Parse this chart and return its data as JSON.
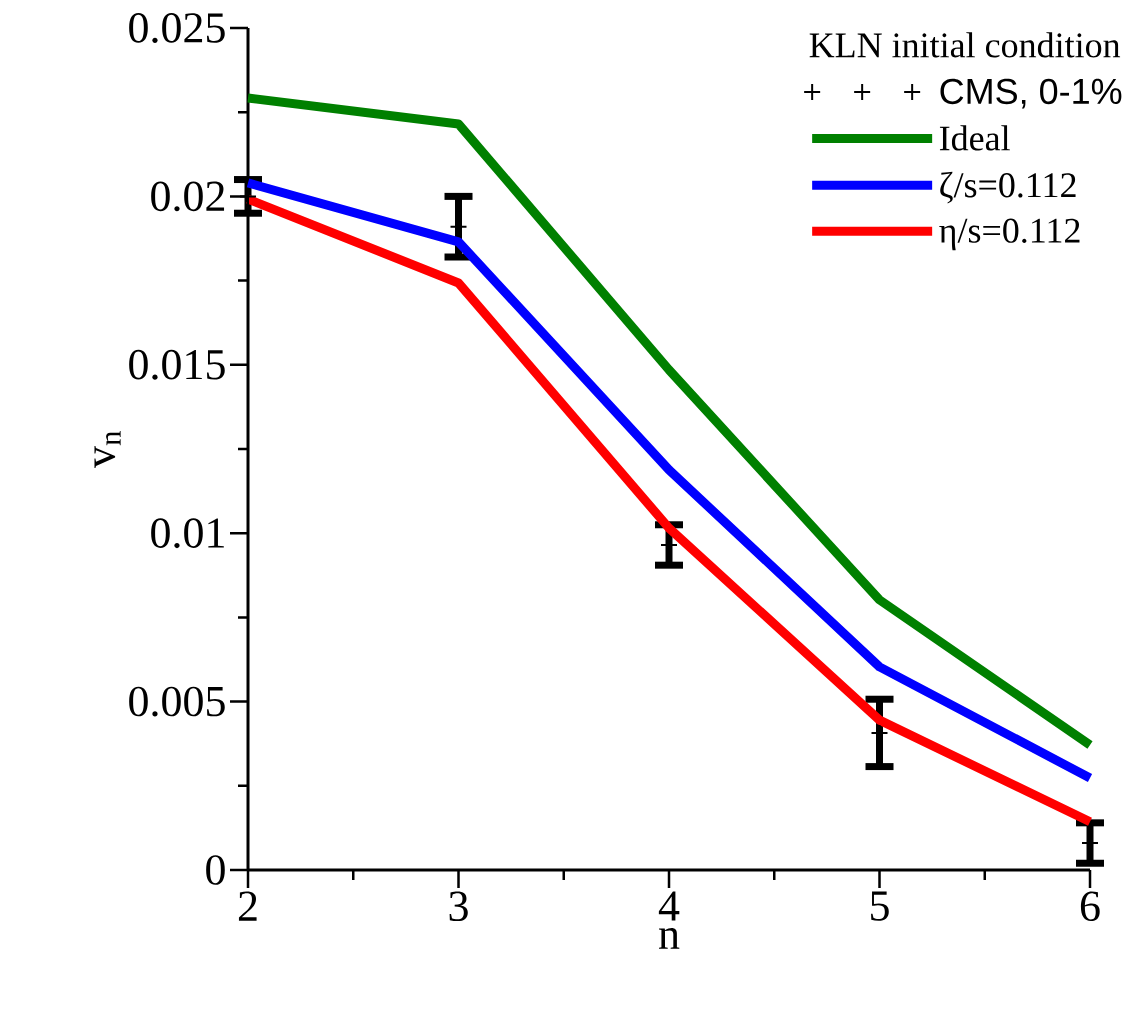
{
  "chart_data": {
    "type": "line",
    "xlabel": "n",
    "ylabel": "v$_{n}$",
    "legend_title": "KLN initial condition",
    "legend": "top right",
    "x": [
      2,
      3,
      4,
      5,
      6
    ],
    "xlim": [
      2,
      6
    ],
    "xticks": [
      2,
      3,
      4,
      5,
      6
    ],
    "ylim": [
      0,
      0.025
    ],
    "yticks": [
      0,
      0.005,
      0.01,
      0.015,
      0.02,
      0.025
    ],
    "series": [
      {
        "name": "CMS, 0-1%",
        "type": "scatter",
        "marker": "cross",
        "color": "#000000",
        "values": [
          0.02,
          0.0191,
          0.00965,
          0.00407,
          0.0008
        ],
        "errors": [
          0.0005,
          0.0009,
          0.0006,
          0.001,
          [
            0.0002,
            0.0014
          ]
        ]
      },
      {
        "name": "Ideal",
        "color": "#008000",
        "values": [
          0.02292,
          0.02215,
          0.01485,
          0.00802,
          0.00371
        ]
      },
      {
        "name": "ζ/s=0.112",
        "color": "#0000ff",
        "values": [
          0.0204,
          0.01865,
          0.01188,
          0.00603,
          0.00273
        ]
      },
      {
        "name": "η/s=0.112",
        "color": "#ff0000",
        "values": [
          0.01992,
          0.01743,
          0.01015,
          0.00445,
          0.00143
        ]
      }
    ]
  }
}
